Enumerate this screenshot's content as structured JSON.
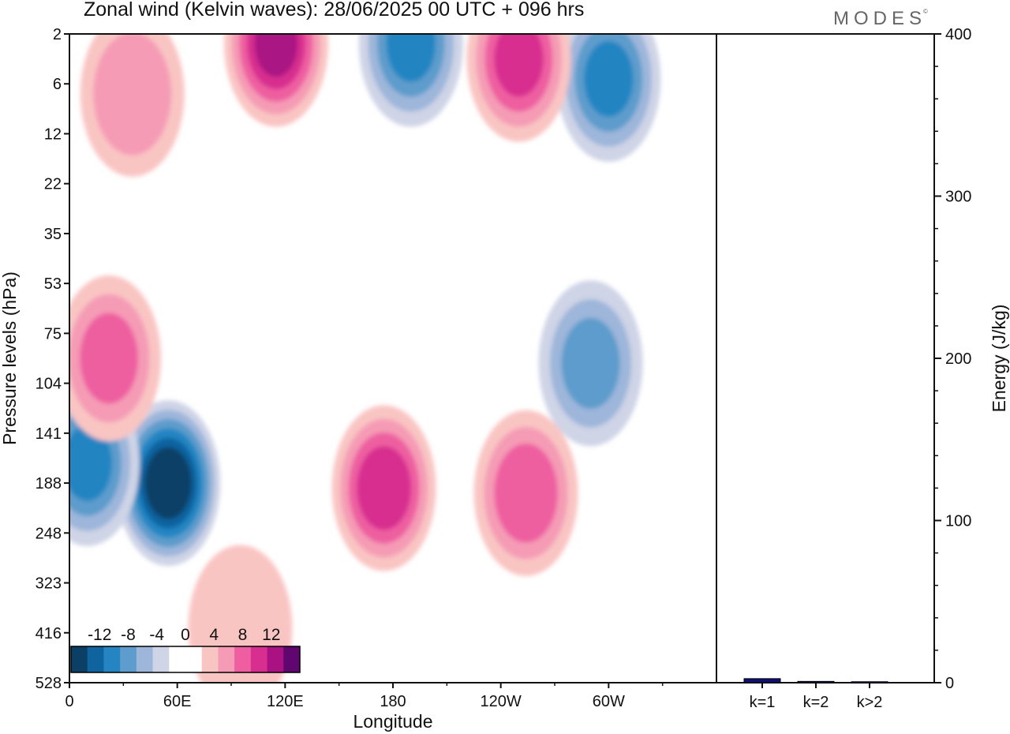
{
  "title": "Zonal wind (Kelvin waves):  28/06/2025  00 UTC  + 096 hrs",
  "brand": "MODES",
  "brand_mark": "©",
  "chart_data": [
    {
      "type": "heatmap",
      "title": "Zonal wind (Kelvin waves):  28/06/2025  00 UTC  + 096 hrs",
      "xlabel": "Longitude",
      "ylabel": "Pressure levels (hPa)",
      "x_ticks": [
        "0",
        "60E",
        "120E",
        "180",
        "120W",
        "60W"
      ],
      "y_ticks": [
        "2",
        "6",
        "12",
        "22",
        "35",
        "53",
        "75",
        "104",
        "141",
        "188",
        "248",
        "323",
        "416",
        "528"
      ],
      "grid": false,
      "colorbar": {
        "position": "bottom-left",
        "labels": [
          "-12",
          "-8",
          "-4",
          "0",
          "4",
          "8",
          "12"
        ],
        "levels": [
          -16,
          -14,
          -12,
          -10,
          -8,
          -6,
          -4,
          -2,
          0,
          2,
          4,
          6,
          8,
          10,
          12,
          14,
          16
        ],
        "colors": [
          "#0b3f66",
          "#0f64a0",
          "#2485c2",
          "#5d9ccc",
          "#9db6da",
          "#cfd4e6",
          "#ffffff",
          "#ffffff",
          "#f9c5c3",
          "#f59bb5",
          "#ee5ea0",
          "#d72e8f",
          "#aa1283",
          "#5f066f"
        ]
      },
      "features": [
        {
          "lon": 55,
          "level_index": 9.0,
          "value": -14
        },
        {
          "lon": 10,
          "level_index": 8.6,
          "value": -8
        },
        {
          "lon": 22,
          "level_index": 6.5,
          "value": 6
        },
        {
          "lon": 175,
          "level_index": 9.1,
          "value": 9
        },
        {
          "lon": 254,
          "level_index": 9.2,
          "value": 7
        },
        {
          "lon": 290,
          "level_index": 6.6,
          "value": -6
        },
        {
          "lon": 190,
          "level_index": 0.2,
          "value": -8
        },
        {
          "lon": 300,
          "level_index": 0.9,
          "value": -8
        },
        {
          "lon": 115,
          "level_index": 0.2,
          "value": 10
        },
        {
          "lon": 250,
          "level_index": 0.5,
          "value": 8
        },
        {
          "lon": 35,
          "level_index": 1.2,
          "value": 5
        },
        {
          "lon": 95,
          "level_index": 11.9,
          "value": 2
        }
      ]
    },
    {
      "type": "bar",
      "categories": [
        "k=1",
        "k=2",
        "k>2"
      ],
      "values": [
        2.5,
        0.8,
        0.6
      ],
      "ylabel": "Energy (J/kg)",
      "ylim": [
        0,
        400
      ],
      "y_ticks": [
        "0",
        "100",
        "200",
        "300",
        "400"
      ],
      "bar_color": "#101070"
    }
  ]
}
